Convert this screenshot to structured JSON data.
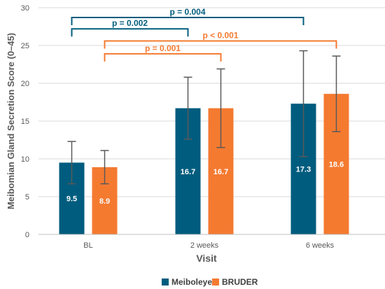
{
  "chart_data": {
    "type": "bar",
    "categories": [
      "BL",
      "2 weeks",
      "6 weeks"
    ],
    "series": [
      {
        "name": "Meiboleyes",
        "color": "#005C7E",
        "values": [
          9.5,
          16.7,
          17.3
        ],
        "labels": [
          "9.5",
          "16.7",
          "17.3"
        ],
        "error_low": [
          6.7,
          12.6,
          10.3
        ],
        "error_high": [
          12.3,
          20.8,
          24.3
        ]
      },
      {
        "name": "BRUDER",
        "color": "#F47A30",
        "values": [
          8.9,
          16.7,
          18.6
        ],
        "labels": [
          "8.9",
          "16.7",
          "18.6"
        ],
        "error_low": [
          6.7,
          11.5,
          13.6
        ],
        "error_high": [
          11.1,
          21.9,
          23.6
        ]
      }
    ],
    "xlabel": "Visit",
    "ylabel": "Meibomian Gland Secretion Score (0–45)",
    "ylim": [
      0,
      30
    ],
    "yticks": [
      "0",
      "5",
      "10",
      "15",
      "20",
      "25",
      "30"
    ],
    "grid": true,
    "legend_position": "bottom",
    "significance": [
      {
        "label": "p = 0.004",
        "series": "Meiboleyes",
        "from": "BL",
        "to": "6 weeks",
        "level": 28.7,
        "color": "#005C7E"
      },
      {
        "label": "p = 0.002",
        "series": "Meiboleyes",
        "from": "BL",
        "to": "2 weeks",
        "level": 27.2,
        "color": "#005C7E"
      },
      {
        "label": "p < 0.001",
        "series": "BRUDER",
        "from": "BL",
        "to": "6 weeks",
        "level": 25.6,
        "color": "#F47A30"
      },
      {
        "label": "p = 0.001",
        "series": "BRUDER",
        "from": "BL",
        "to": "2 weeks",
        "level": 23.9,
        "color": "#F47A30"
      }
    ]
  }
}
